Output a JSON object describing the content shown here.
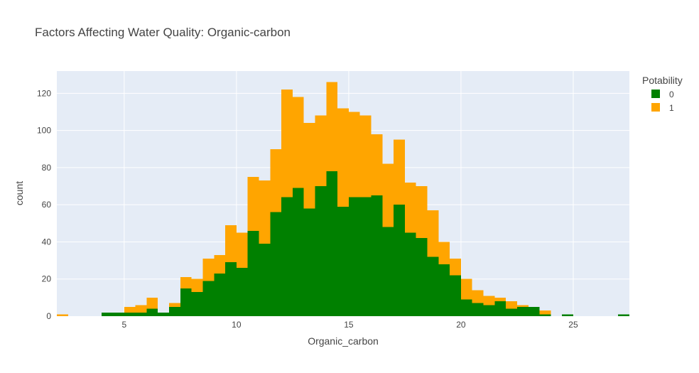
{
  "chart_data": {
    "type": "bar",
    "title": "Factors Affecting Water Quality: Organic-carbon",
    "xlabel": "Organic_carbon",
    "ylabel": "count",
    "barmode": "stack",
    "bin_width": 0.5,
    "xlim": [
      2,
      27.5
    ],
    "ylim": [
      0,
      132
    ],
    "x_ticks": [
      5,
      10,
      15,
      20,
      25
    ],
    "y_ticks": [
      0,
      20,
      40,
      60,
      80,
      100,
      120
    ],
    "grid": true,
    "legend": {
      "title": "Potability",
      "placement": "top-right"
    },
    "bin_starts": [
      2,
      2.5,
      3,
      3.5,
      4,
      4.5,
      5,
      5.5,
      6,
      6.5,
      7,
      7.5,
      8,
      8.5,
      9,
      9.5,
      10,
      10.5,
      11,
      11.5,
      12,
      12.5,
      13,
      13.5,
      14,
      14.5,
      15,
      15.5,
      16,
      16.5,
      17,
      17.5,
      18,
      18.5,
      19,
      19.5,
      20,
      20.5,
      21,
      21.5,
      22,
      22.5,
      23,
      23.5,
      24,
      24.5,
      25,
      25.5,
      26,
      26.5,
      27
    ],
    "series": [
      {
        "name": "0",
        "color": "#008000",
        "values": [
          0,
          0,
          0,
          0,
          2,
          2,
          2,
          2,
          4,
          2,
          5,
          15,
          13,
          19,
          23,
          29,
          26,
          46,
          39,
          56,
          64,
          69,
          58,
          70,
          78,
          59,
          64,
          64,
          65,
          48,
          60,
          45,
          42,
          32,
          28,
          22,
          9,
          7,
          6,
          8,
          4,
          5,
          5,
          1,
          0,
          1,
          0,
          0,
          0,
          0,
          1
        ]
      },
      {
        "name": "1",
        "color": "#FFA500",
        "values": [
          1,
          0,
          0,
          0,
          0,
          0,
          3,
          4,
          6,
          0,
          2,
          6,
          7,
          12,
          10,
          20,
          19,
          29,
          34,
          34,
          58,
          49,
          46,
          38,
          48,
          53,
          46,
          44,
          33,
          34,
          35,
          27,
          28,
          25,
          12,
          9,
          11,
          7,
          5,
          2,
          4,
          1,
          0,
          2,
          0,
          0,
          0,
          0,
          0,
          0,
          0
        ]
      }
    ]
  }
}
